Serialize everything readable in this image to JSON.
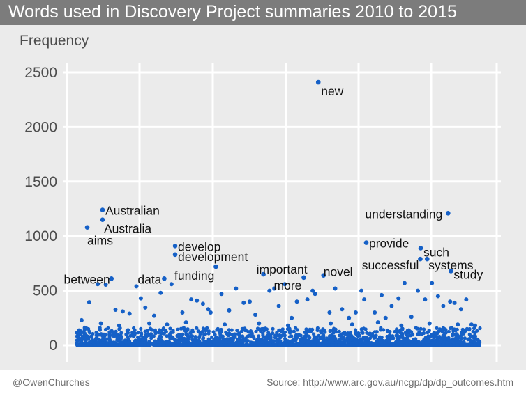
{
  "header": {
    "title": "Words used in Discovery Project summaries 2010 to 2015"
  },
  "footer": {
    "credit": "@OwenChurches",
    "source": "Source: http://www.arc.gov.au/ncgp/dp/dp_outcomes.htm"
  },
  "colors": {
    "point": "#1560c7",
    "panel": "#ebebeb",
    "grid": "#ffffff",
    "title_bar": "#7c7c7c"
  },
  "chart_data": {
    "type": "scatter",
    "title": "Words used in Discovery Project summaries 2010 to 2015",
    "ylabel": "Frequency",
    "xlabel": "",
    "ylim": [
      -60,
      2640
    ],
    "yticks": [
      0,
      500,
      1000,
      1500,
      2000,
      2500
    ],
    "grid": true,
    "x_axis": "words in alphabetical order (no tick labels shown)",
    "xlim": [
      0,
      100
    ],
    "labeled_points": [
      {
        "word": "aims",
        "x": 2.6,
        "y": 1080
      },
      {
        "word": "Australian",
        "x": 6.4,
        "y": 1240
      },
      {
        "word": "Australia",
        "x": 6.4,
        "y": 1150
      },
      {
        "word": "between",
        "x": 8.6,
        "y": 610
      },
      {
        "word": "data",
        "x": 21.7,
        "y": 610
      },
      {
        "word": "develop",
        "x": 24.4,
        "y": 910
      },
      {
        "word": "development",
        "x": 24.4,
        "y": 830
      },
      {
        "word": "funding",
        "x": 34.5,
        "y": 720
      },
      {
        "word": "important",
        "x": 46.3,
        "y": 650
      },
      {
        "word": "more",
        "x": 56.3,
        "y": 620
      },
      {
        "word": "new",
        "x": 59.9,
        "y": 2410
      },
      {
        "word": "novel",
        "x": 61.2,
        "y": 640
      },
      {
        "word": "provide",
        "x": 71.8,
        "y": 940
      },
      {
        "word": "successful",
        "x": 85.2,
        "y": 790
      },
      {
        "word": "such",
        "x": 85.3,
        "y": 890
      },
      {
        "word": "systems",
        "x": 86.9,
        "y": 790
      },
      {
        "word": "understanding",
        "x": 92.1,
        "y": 1210
      },
      {
        "word": "study",
        "x": 92.8,
        "y": 680
      }
    ],
    "unlabeled_points": [
      [
        1.2,
        230
      ],
      [
        3.1,
        395
      ],
      [
        5.2,
        560
      ],
      [
        7.2,
        555
      ],
      [
        9.6,
        325
      ],
      [
        11.4,
        310
      ],
      [
        13.1,
        290
      ],
      [
        14.8,
        540
      ],
      [
        15.9,
        430
      ],
      [
        17.0,
        345
      ],
      [
        19.2,
        270
      ],
      [
        20.8,
        480
      ],
      [
        23.5,
        560
      ],
      [
        26.2,
        300
      ],
      [
        28.4,
        420
      ],
      [
        29.8,
        410
      ],
      [
        31.3,
        380
      ],
      [
        32.6,
        330
      ],
      [
        33.2,
        300
      ],
      [
        35.9,
        470
      ],
      [
        37.8,
        320
      ],
      [
        39.5,
        520
      ],
      [
        41.4,
        390
      ],
      [
        42.9,
        400
      ],
      [
        44.3,
        280
      ],
      [
        47.8,
        500
      ],
      [
        49.0,
        520
      ],
      [
        50.1,
        360
      ],
      [
        51.6,
        560
      ],
      [
        53.3,
        250
      ],
      [
        54.6,
        400
      ],
      [
        57.2,
        420
      ],
      [
        58.5,
        500
      ],
      [
        59.1,
        470
      ],
      [
        62.7,
        300
      ],
      [
        64.1,
        520
      ],
      [
        65.8,
        330
      ],
      [
        67.5,
        250
      ],
      [
        69.2,
        300
      ],
      [
        70.6,
        500
      ],
      [
        71.3,
        420
      ],
      [
        73.9,
        300
      ],
      [
        75.6,
        460
      ],
      [
        76.6,
        250
      ],
      [
        78.1,
        360
      ],
      [
        79.8,
        430
      ],
      [
        81.3,
        570
      ],
      [
        83.0,
        260
      ],
      [
        84.6,
        500
      ],
      [
        86.4,
        420
      ],
      [
        88.1,
        570
      ],
      [
        89.6,
        450
      ],
      [
        90.9,
        360
      ],
      [
        92.6,
        400
      ],
      [
        93.7,
        390
      ],
      [
        95.3,
        330
      ],
      [
        96.6,
        420
      ],
      [
        97.9,
        190
      ],
      [
        98.8,
        180
      ],
      [
        2.0,
        160
      ],
      [
        6.0,
        200
      ],
      [
        10.5,
        180
      ],
      [
        18.0,
        200
      ],
      [
        22.4,
        190
      ],
      [
        27.1,
        210
      ],
      [
        36.7,
        190
      ],
      [
        45.2,
        200
      ],
      [
        52.4,
        180
      ],
      [
        63.0,
        200
      ],
      [
        68.3,
        190
      ],
      [
        74.7,
        210
      ],
      [
        80.5,
        180
      ],
      [
        87.5,
        200
      ],
      [
        94.5,
        190
      ]
    ]
  }
}
